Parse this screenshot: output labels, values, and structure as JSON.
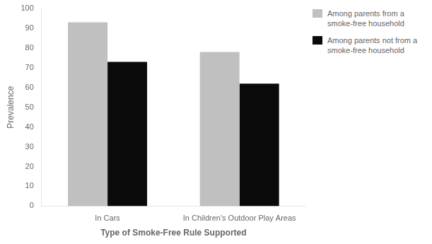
{
  "chart_data": {
    "type": "bar",
    "xlabel": "Type of Smoke-Free Rule Supported",
    "ylabel": "Prevalence",
    "categories": [
      "In Cars",
      "In Children's Outdoor Play Areas"
    ],
    "series": [
      {
        "name": "Among parents from a\nsmoke-free household",
        "color": "#C0C0C0",
        "values": [
          93,
          78
        ]
      },
      {
        "name": "Among parents not from a\nsmoke-free household",
        "color": "#0a0a0a",
        "values": [
          73,
          62
        ]
      }
    ],
    "ylim": [
      0,
      100
    ],
    "yticks": [
      0,
      10,
      20,
      30,
      40,
      50,
      60,
      70,
      80,
      90,
      100
    ],
    "grid": false,
    "legend": "upper right"
  }
}
